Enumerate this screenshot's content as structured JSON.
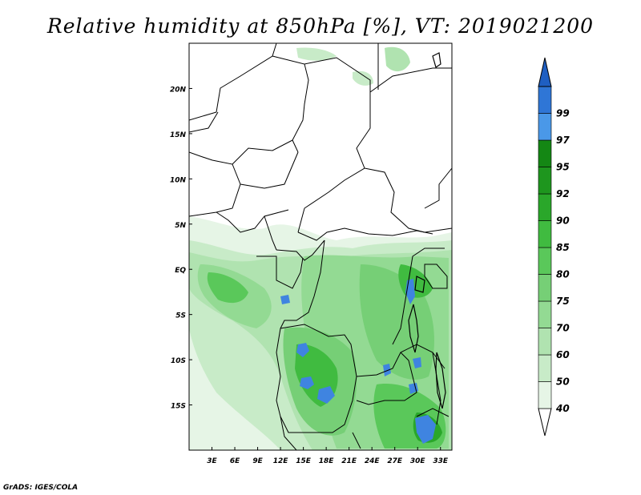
{
  "title": "Relative humidity at 850hPa [%], VT: 2019021200",
  "credit": "GrADS: IGES/COLA",
  "map": {
    "lon_range": [
      0,
      34.5
    ],
    "lat_range": [
      -20,
      25
    ],
    "lat_ticks": [
      {
        "value": 20,
        "label": "20N"
      },
      {
        "value": 15,
        "label": "15N"
      },
      {
        "value": 10,
        "label": "10N"
      },
      {
        "value": 5,
        "label": "5N"
      },
      {
        "value": 0,
        "label": "EQ"
      },
      {
        "value": -5,
        "label": "5S"
      },
      {
        "value": -10,
        "label": "10S"
      },
      {
        "value": -15,
        "label": "15S"
      }
    ],
    "lon_ticks": [
      {
        "value": 3,
        "label": "3E"
      },
      {
        "value": 6,
        "label": "6E"
      },
      {
        "value": 9,
        "label": "9E"
      },
      {
        "value": 12,
        "label": "12E"
      },
      {
        "value": 15,
        "label": "15E"
      },
      {
        "value": 18,
        "label": "18E"
      },
      {
        "value": 21,
        "label": "21E"
      },
      {
        "value": 24,
        "label": "24E"
      },
      {
        "value": 27,
        "label": "27E"
      },
      {
        "value": 30,
        "label": "30E"
      },
      {
        "value": 33,
        "label": "33E"
      }
    ]
  },
  "colorbar": {
    "levels": [
      {
        "label": "40",
        "color": "#e6f5e6"
      },
      {
        "label": "50",
        "color": "#c8ebc8"
      },
      {
        "label": "60",
        "color": "#b0e3b0"
      },
      {
        "label": "70",
        "color": "#93da93"
      },
      {
        "label": "75",
        "color": "#76cf76"
      },
      {
        "label": "80",
        "color": "#5ac85a"
      },
      {
        "label": "85",
        "color": "#40bb40"
      },
      {
        "label": "90",
        "color": "#2aa72a"
      },
      {
        "label": "92",
        "color": "#1e961e"
      },
      {
        "label": "95",
        "color": "#148714"
      },
      {
        "label": "97",
        "color": "#4a98e8"
      },
      {
        "label": "99",
        "color": "#2f76d6"
      }
    ],
    "top_color": "#1f5fc2",
    "bottom_color": "#ffffff"
  }
}
